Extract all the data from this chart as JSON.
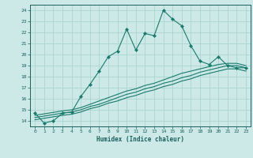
{
  "xlabel": "Humidex (Indice chaleur)",
  "bg_color": "#cce9e7",
  "grid_color": "#aad4d0",
  "line_color": "#1a7a6e",
  "xlim": [
    -0.5,
    23.5
  ],
  "ylim": [
    13.5,
    24.5
  ],
  "yticks": [
    14,
    15,
    16,
    17,
    18,
    19,
    20,
    21,
    22,
    23,
    24
  ],
  "xticks": [
    0,
    1,
    2,
    3,
    4,
    5,
    6,
    7,
    8,
    9,
    10,
    11,
    12,
    13,
    14,
    15,
    16,
    17,
    18,
    19,
    20,
    21,
    22,
    23
  ],
  "main_line_x": [
    0,
    1,
    2,
    3,
    4,
    5,
    6,
    7,
    8,
    9,
    10,
    11,
    12,
    13,
    14,
    15,
    16,
    17,
    18,
    19,
    20,
    21,
    22,
    23
  ],
  "main_line_y": [
    14.7,
    13.8,
    14.0,
    14.7,
    14.8,
    16.2,
    17.3,
    18.5,
    19.8,
    20.3,
    22.3,
    20.4,
    21.9,
    21.7,
    24.0,
    23.2,
    22.6,
    20.8,
    19.4,
    19.1,
    19.8,
    19.0,
    18.8,
    18.8
  ],
  "line2_x": [
    0,
    3,
    4,
    5,
    6,
    7,
    8,
    9,
    10,
    11,
    12,
    13,
    14,
    15,
    16,
    17,
    18,
    19,
    20,
    21,
    22,
    23
  ],
  "line2_y": [
    14.5,
    14.9,
    15.0,
    15.2,
    15.5,
    15.8,
    16.1,
    16.4,
    16.7,
    16.9,
    17.2,
    17.4,
    17.7,
    18.0,
    18.3,
    18.5,
    18.7,
    18.9,
    19.1,
    19.2,
    19.2,
    19.0
  ],
  "line3_x": [
    0,
    3,
    4,
    5,
    6,
    7,
    8,
    9,
    10,
    11,
    12,
    13,
    14,
    15,
    16,
    17,
    18,
    19,
    20,
    21,
    22,
    23
  ],
  "line3_y": [
    14.3,
    14.7,
    14.8,
    15.0,
    15.3,
    15.5,
    15.8,
    16.1,
    16.4,
    16.6,
    16.9,
    17.1,
    17.4,
    17.6,
    17.9,
    18.1,
    18.4,
    18.6,
    18.8,
    19.0,
    19.0,
    18.8
  ],
  "line4_x": [
    0,
    3,
    4,
    5,
    6,
    7,
    8,
    9,
    10,
    11,
    12,
    13,
    14,
    15,
    16,
    17,
    18,
    19,
    20,
    21,
    22,
    23
  ],
  "line4_y": [
    14.1,
    14.5,
    14.6,
    14.8,
    15.1,
    15.3,
    15.6,
    15.8,
    16.1,
    16.3,
    16.6,
    16.8,
    17.1,
    17.3,
    17.6,
    17.8,
    18.1,
    18.3,
    18.5,
    18.7,
    18.7,
    18.5
  ]
}
